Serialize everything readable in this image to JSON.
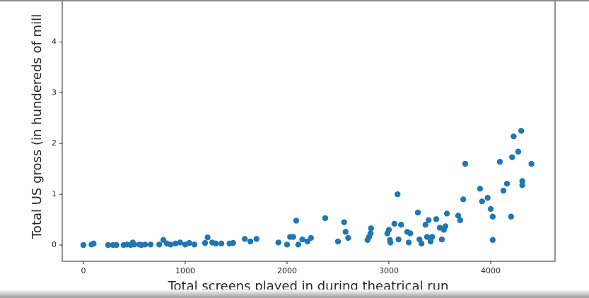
{
  "chart_data": {
    "type": "scatter",
    "xlabel": "Total screens played in during theatrical run",
    "ylabel": "Total US gross (in hundereds of mill",
    "color": "#1f77b4",
    "xlim": [
      -208,
      4632
    ],
    "ylim": [
      -0.32,
      4.85
    ],
    "xticks": [
      0,
      1000,
      2000,
      3000,
      4000
    ],
    "yticks": [
      0,
      1,
      2,
      3,
      4
    ],
    "x": [
      0,
      80,
      100,
      243,
      290,
      325,
      395,
      430,
      465,
      500,
      485,
      550,
      570,
      605,
      660,
      745,
      785,
      820,
      855,
      905,
      950,
      1000,
      1040,
      1090,
      1195,
      1220,
      1265,
      1300,
      1355,
      1435,
      1470,
      1585,
      1640,
      1700,
      1915,
      2000,
      2030,
      2060,
      2090,
      2110,
      2150,
      2200,
      2235,
      2375,
      2500,
      2560,
      2575,
      2600,
      2790,
      2805,
      2820,
      2825,
      2985,
      3000,
      3010,
      3015,
      3055,
      3085,
      3095,
      3120,
      3180,
      3195,
      3210,
      3285,
      3300,
      3320,
      3360,
      3375,
      3390,
      3410,
      3425,
      3465,
      3500,
      3520,
      3540,
      3555,
      3570,
      3680,
      3700,
      3730,
      3750,
      3895,
      3915,
      3970,
      4000,
      4020,
      4020,
      4090,
      4125,
      4160,
      4200,
      4210,
      4225,
      4270,
      4300,
      4310,
      4310,
      4400
    ],
    "values": [
      0.0,
      0.01,
      0.03,
      0.0,
      0.0,
      0.0,
      0.0,
      0.01,
      0.0,
      0.01,
      0.05,
      0.01,
      0.0,
      0.01,
      0.01,
      0.01,
      0.1,
      0.03,
      0.01,
      0.03,
      0.05,
      0.01,
      0.04,
      0.01,
      0.04,
      0.15,
      0.05,
      0.03,
      0.03,
      0.03,
      0.04,
      0.12,
      0.07,
      0.12,
      0.05,
      0.01,
      0.16,
      0.16,
      0.48,
      0.01,
      0.11,
      0.07,
      0.14,
      0.53,
      0.07,
      0.45,
      0.26,
      0.14,
      0.1,
      0.16,
      0.23,
      0.33,
      0.23,
      0.3,
      0.1,
      0.05,
      0.42,
      1.0,
      0.11,
      0.4,
      0.26,
      0.05,
      0.23,
      0.64,
      0.11,
      0.03,
      0.4,
      0.16,
      0.49,
      0.07,
      0.16,
      0.51,
      0.34,
      0.11,
      0.3,
      0.37,
      0.62,
      0.58,
      0.49,
      0.9,
      1.6,
      1.11,
      0.86,
      0.93,
      0.71,
      0.56,
      0.1,
      1.64,
      1.07,
      1.21,
      0.56,
      1.73,
      2.14,
      1.84,
      2.25,
      1.26,
      1.18,
      1.6
    ]
  }
}
